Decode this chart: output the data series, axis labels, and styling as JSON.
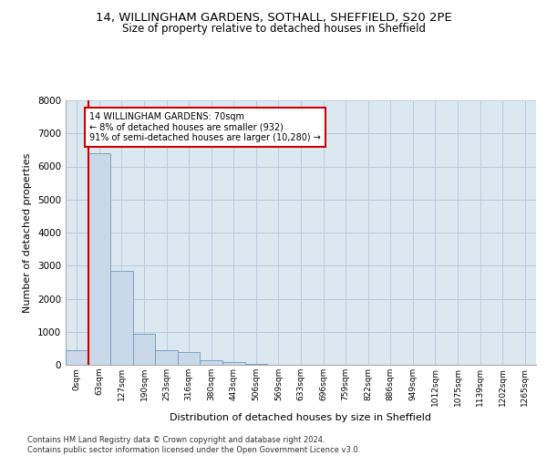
{
  "title1": "14, WILLINGHAM GARDENS, SOTHALL, SHEFFIELD, S20 2PE",
  "title2": "Size of property relative to detached houses in Sheffield",
  "xlabel": "Distribution of detached houses by size in Sheffield",
  "ylabel": "Number of detached properties",
  "footnote": "Contains HM Land Registry data © Crown copyright and database right 2024.\nContains public sector information licensed under the Open Government Licence v3.0.",
  "bar_labels": [
    "0sqm",
    "63sqm",
    "127sqm",
    "190sqm",
    "253sqm",
    "316sqm",
    "380sqm",
    "443sqm",
    "506sqm",
    "569sqm",
    "633sqm",
    "696sqm",
    "759sqm",
    "822sqm",
    "886sqm",
    "949sqm",
    "1012sqm",
    "1075sqm",
    "1139sqm",
    "1202sqm",
    "1265sqm"
  ],
  "bar_heights": [
    450,
    6400,
    2850,
    950,
    430,
    400,
    130,
    80,
    30,
    0,
    0,
    0,
    0,
    0,
    0,
    0,
    0,
    0,
    0,
    0,
    0
  ],
  "bar_color": "#c9d9ea",
  "bar_edge_color": "#7099b8",
  "property_sqm": 70,
  "annotation_title": "14 WILLINGHAM GARDENS: 70sqm",
  "annotation_line2": "← 8% of detached houses are smaller (932)",
  "annotation_line3": "91% of semi-detached houses are larger (10,280) →",
  "annotation_box_color": "#cc0000",
  "red_line_color": "#cc0000",
  "ylim": [
    0,
    8000
  ],
  "yticks": [
    0,
    1000,
    2000,
    3000,
    4000,
    5000,
    6000,
    7000,
    8000
  ],
  "grid_color": "#b8ccdd",
  "background_color": "#dce8f0",
  "title1_fontsize": 9.5,
  "title2_fontsize": 8.5
}
